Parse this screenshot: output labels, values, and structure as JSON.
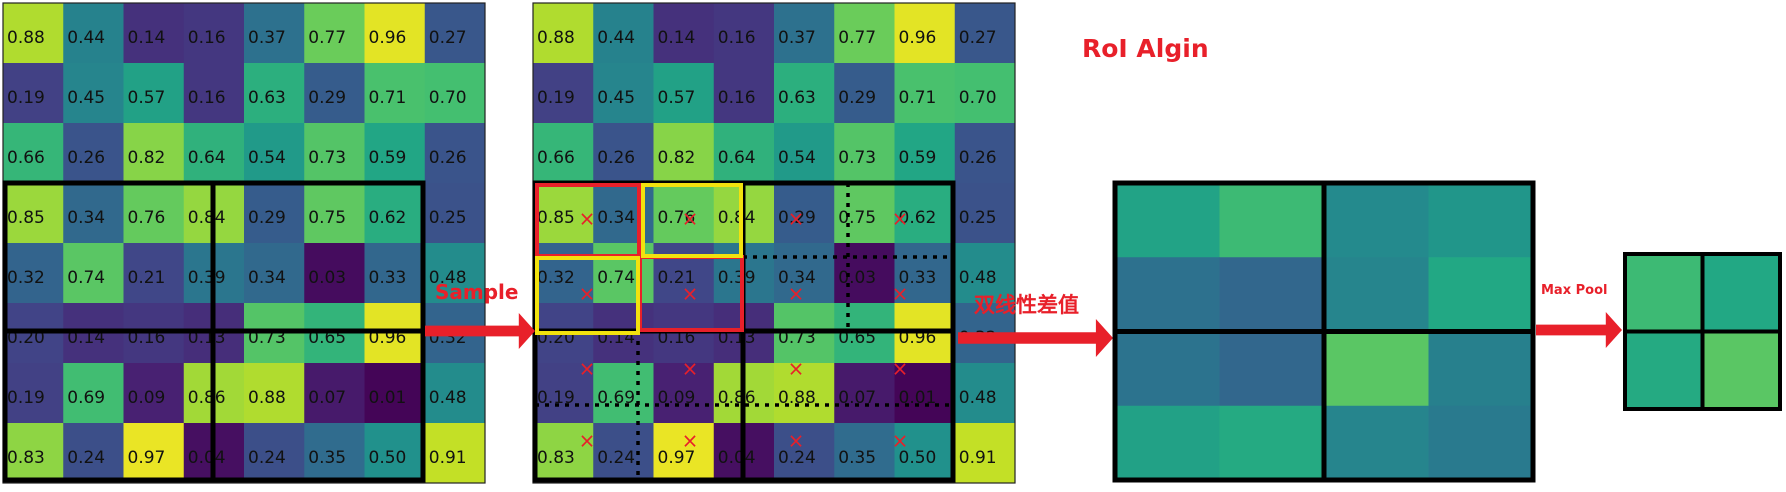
{
  "title": "RoI Algin",
  "labels": {
    "sample": "Sample",
    "bilinear": "双线性差值",
    "maxpool": "Max Pool"
  },
  "feature_map": {
    "rows": 8,
    "cols": 8,
    "values": [
      [
        "0.88",
        "0.44",
        "0.14",
        "0.16",
        "0.37",
        "0.77",
        "0.96",
        "0.27"
      ],
      [
        "0.19",
        "0.45",
        "0.57",
        "0.16",
        "0.63",
        "0.29",
        "0.71",
        "0.70"
      ],
      [
        "0.66",
        "0.26",
        "0.82",
        "0.64",
        "0.54",
        "0.73",
        "0.59",
        "0.26"
      ],
      [
        "0.85",
        "0.34",
        "0.76",
        "0.84",
        "0.29",
        "0.75",
        "0.62",
        "0.25"
      ],
      [
        "0.32",
        "0.74",
        "0.21",
        "0.39",
        "0.34",
        "0.03",
        "0.33",
        "0.48"
      ],
      [
        "0.20",
        "0.14",
        "0.16",
        "0.13",
        "0.73",
        "0.65",
        "0.96",
        "0.32"
      ],
      [
        "0.19",
        "0.69",
        "0.09",
        "0.86",
        "0.88",
        "0.07",
        "0.01",
        "0.48"
      ],
      [
        "0.83",
        "0.24",
        "0.97",
        "0.04",
        "0.24",
        "0.35",
        "0.50",
        "0.91"
      ]
    ]
  },
  "sampled_values": [
    [
      0.58,
      0.68,
      0.47,
      0.52
    ],
    [
      0.37,
      0.33,
      0.45,
      0.6
    ],
    [
      0.38,
      0.33,
      0.74,
      0.43
    ],
    [
      0.57,
      0.61,
      0.45,
      0.41
    ]
  ],
  "pooled_values": [
    [
      0.68,
      0.6
    ],
    [
      0.61,
      0.74
    ]
  ],
  "colors": {
    "label_red": "#e8202a",
    "arrow_red": "#e8202a",
    "region_red": "#e8202a",
    "region_yellow": "#f2e20e",
    "grid_black": "#000000",
    "colormap": "viridis"
  }
}
